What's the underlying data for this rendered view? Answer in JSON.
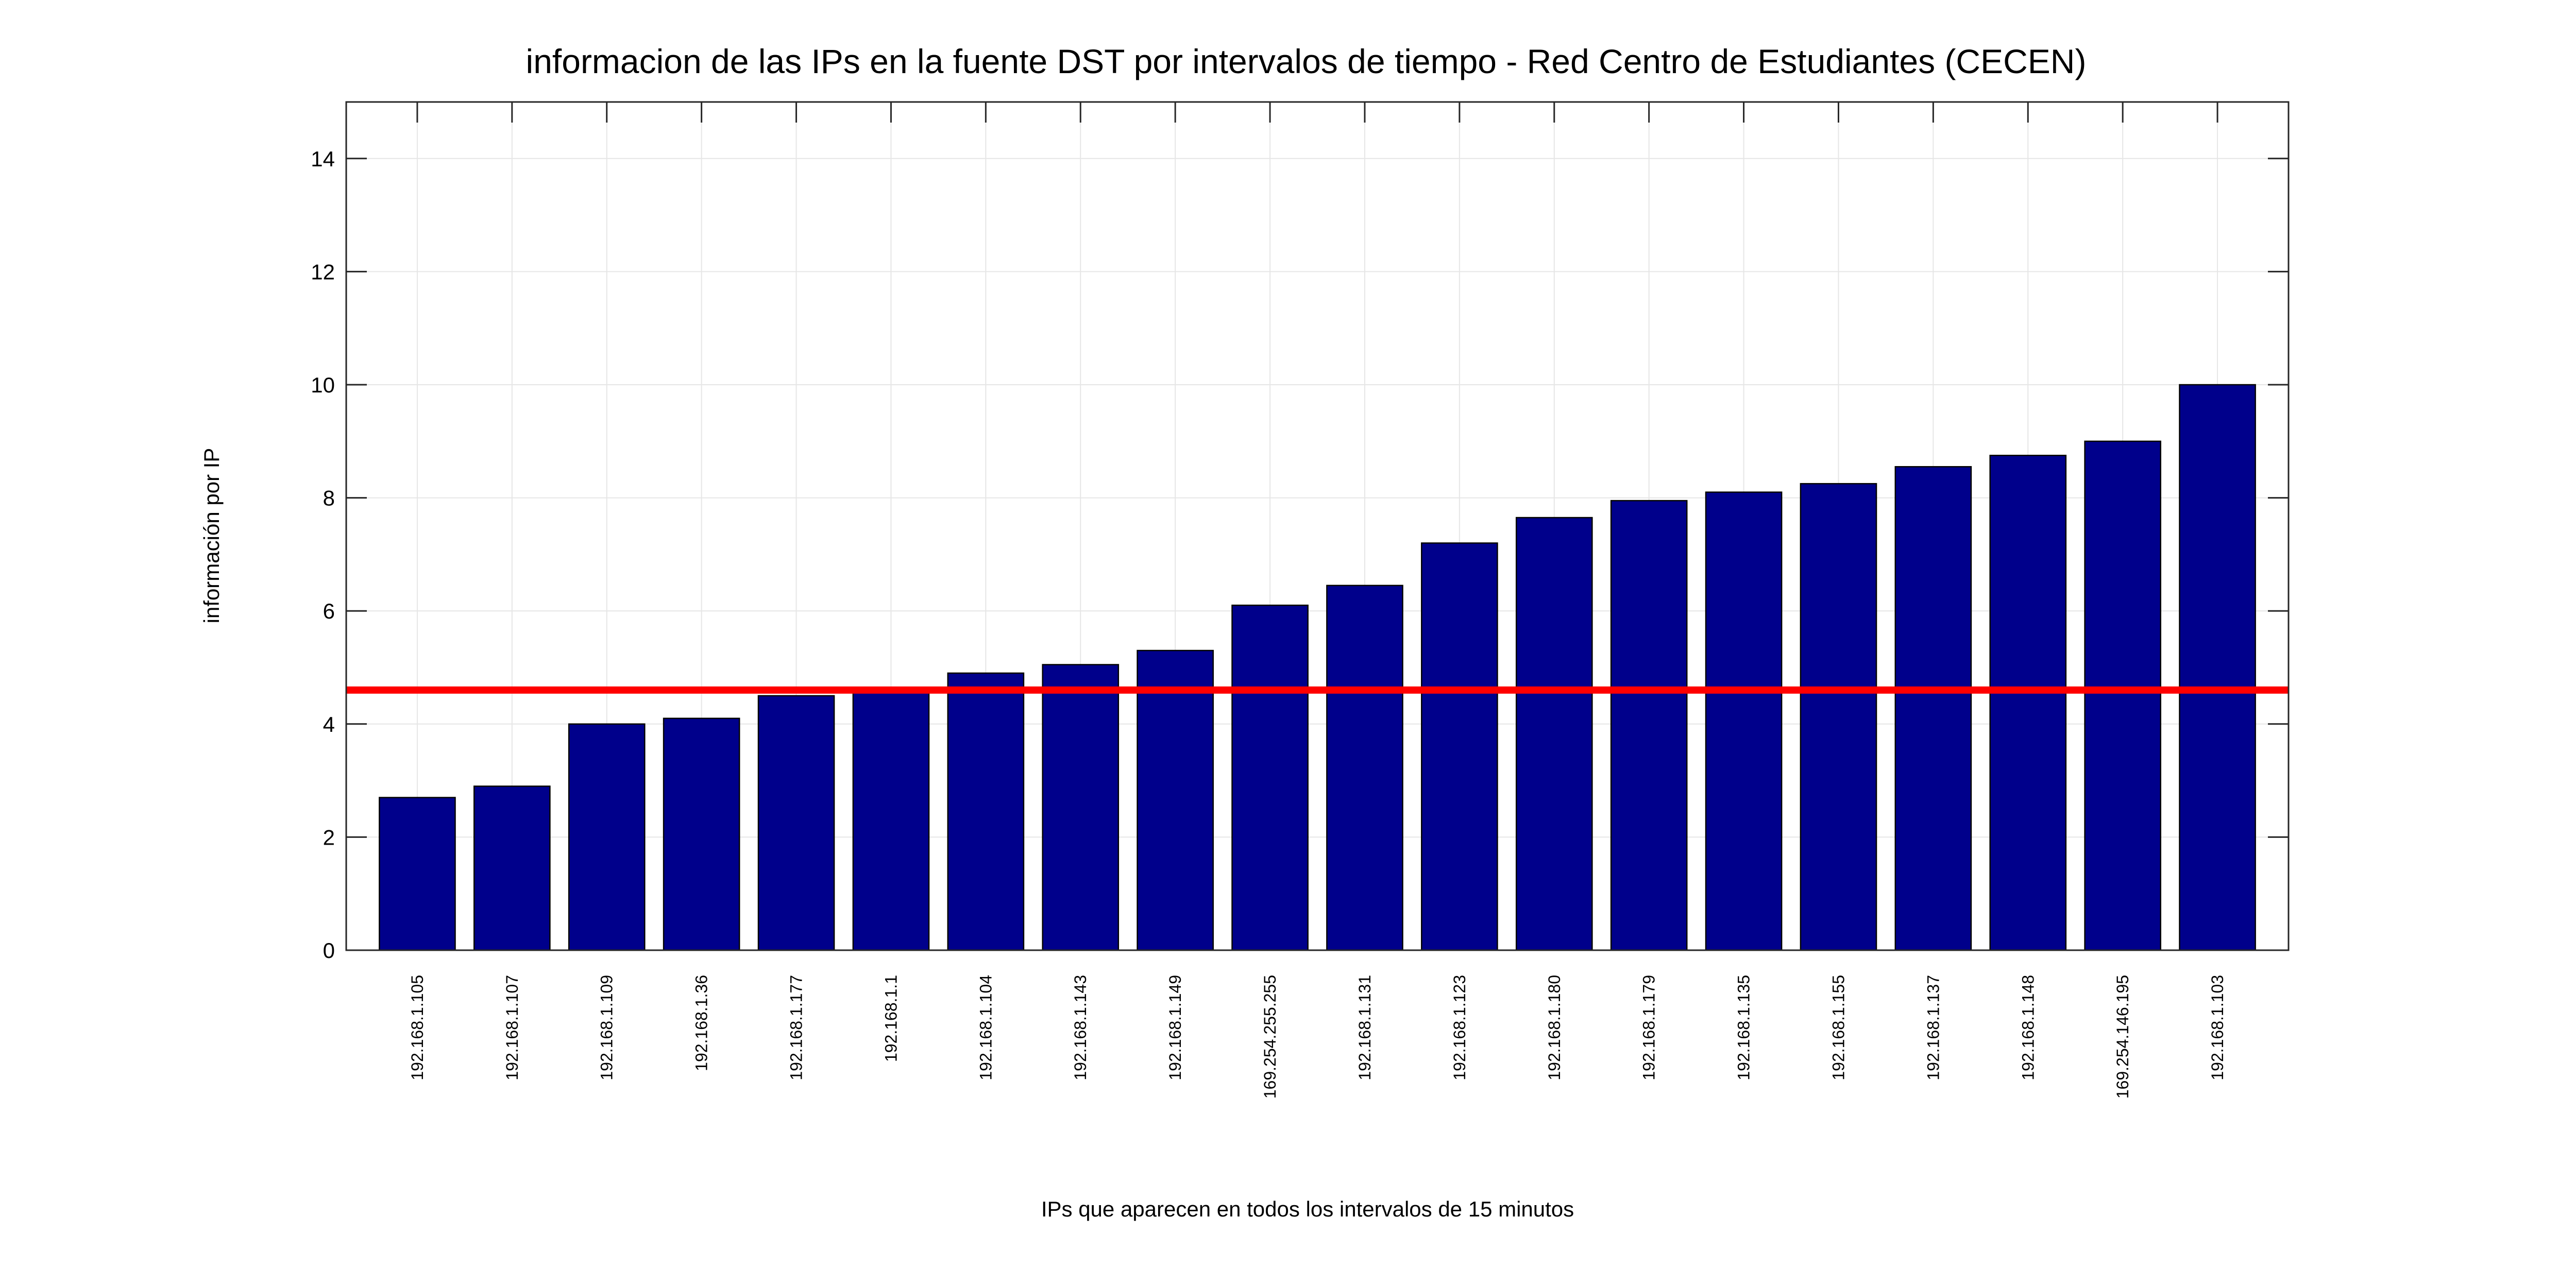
{
  "chart_data": {
    "type": "bar",
    "title": "informacion de las IPs en la fuente DST por intervalos de tiempo - Red Centro de Estudiantes (CECEN)",
    "xlabel": "IPs que aparecen en todos los intervalos de 15 minutos",
    "ylabel": "información por IP",
    "ylim": [
      0,
      15
    ],
    "yticks": [
      0,
      2,
      4,
      6,
      8,
      10,
      12,
      14
    ],
    "grid": true,
    "categories": [
      "192.168.1.105",
      "192.168.1.107",
      "192.168.1.109",
      "192.168.1.36",
      "192.168.1.177",
      "192.168.1.1",
      "192.168.1.104",
      "192.168.1.143",
      "192.168.1.149",
      "169.254.255.255",
      "192.168.1.131",
      "192.168.1.123",
      "192.168.1.180",
      "192.168.1.179",
      "192.168.1.135",
      "192.168.1.155",
      "192.168.1.137",
      "192.168.1.148",
      "169.254.146.195",
      "192.168.1.103"
    ],
    "values": [
      2.7,
      2.9,
      4.0,
      4.1,
      4.5,
      4.6,
      4.9,
      5.05,
      5.3,
      6.1,
      6.45,
      7.2,
      7.65,
      7.95,
      8.1,
      8.25,
      8.55,
      8.75,
      9.0,
      10.0
    ],
    "threshold": 4.6,
    "bar_color": "#00008b",
    "threshold_color": "#ff0000"
  }
}
